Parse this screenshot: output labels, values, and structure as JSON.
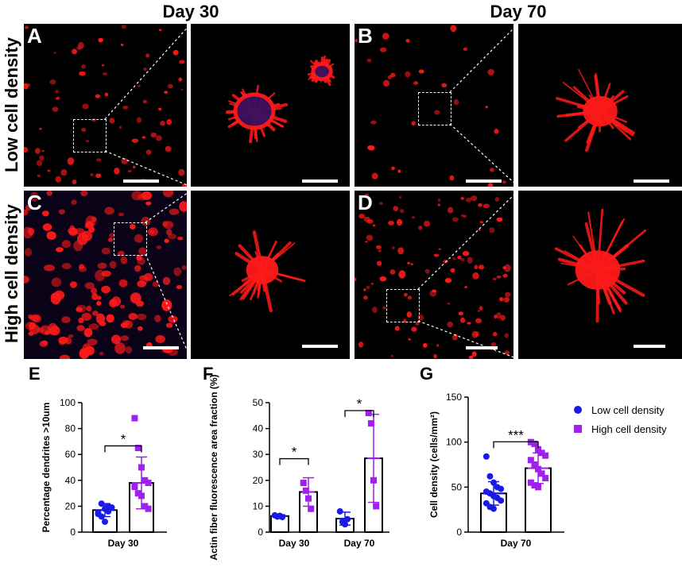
{
  "columns": [
    "Day 30",
    "Day 70"
  ],
  "rows": [
    "Low cell density",
    "High cell density"
  ],
  "panels": [
    "A",
    "B",
    "C",
    "D"
  ],
  "colors": {
    "low": "#1a1ae6",
    "high": "#a020f0",
    "actin": "#ff1a1a"
  },
  "chart_data": [
    {
      "id": "E",
      "type": "bar",
      "categories": [
        "Day 30"
      ],
      "ylabel": "Percentage dendrites >10um",
      "ylim": [
        0,
        100
      ],
      "yticks": [
        0,
        20,
        40,
        60,
        80,
        100
      ],
      "series": [
        {
          "name": "Low cell density",
          "values": [
            17
          ],
          "sd": [
            5
          ],
          "points": [
            [
              14,
              12,
              18,
              20,
              19,
              15,
              22,
              8,
              16
            ]
          ]
        },
        {
          "name": "High cell density",
          "values": [
            38
          ],
          "sd": [
            20
          ],
          "points": [
            [
              88,
              65,
              50,
              40,
              38,
              35,
              30,
              28,
              20,
              18
            ]
          ]
        }
      ],
      "significance": [
        "*"
      ]
    },
    {
      "id": "F",
      "type": "bar",
      "categories": [
        "Day 30",
        "Day 70"
      ],
      "ylabel": "Actin fiber fluorescence area fraction (%)",
      "ylim": [
        0,
        50
      ],
      "yticks": [
        0,
        10,
        20,
        30,
        40,
        50
      ],
      "series": [
        {
          "name": "Low cell density",
          "values": [
            6.2,
            5.2
          ],
          "sd": [
            0.5,
            2.5
          ],
          "points": [
            [
              6.5,
              6.0,
              6.3,
              5.8
            ],
            [
              8,
              4,
              3,
              5
            ]
          ]
        },
        {
          "name": "High cell density",
          "values": [
            15.5,
            28.5
          ],
          "sd": [
            5.5,
            17
          ],
          "points": [
            [
              19,
              16,
              13,
              9
            ],
            [
              46,
              42,
              20,
              10
            ]
          ]
        }
      ],
      "significance": [
        "*",
        "*"
      ]
    },
    {
      "id": "G",
      "type": "bar",
      "categories": [
        "Day 70"
      ],
      "ylabel": "Cell density (cells/mm²)",
      "ylim": [
        0,
        150
      ],
      "yticks": [
        0,
        50,
        100,
        150
      ],
      "series": [
        {
          "name": "Low cell density",
          "values": [
            43
          ],
          "sd": [
            13
          ],
          "points": [
            [
              84,
              62,
              55,
              50,
              48,
              45,
              43,
              40,
              38,
              35,
              32,
              28,
              26
            ]
          ]
        },
        {
          "name": "High cell density",
          "values": [
            71
          ],
          "sd": [
            17
          ],
          "points": [
            [
              100,
              98,
              92,
              88,
              85,
              80,
              75,
              70,
              65,
              60,
              55,
              52,
              50
            ]
          ]
        }
      ],
      "significance": [
        "***"
      ]
    }
  ],
  "legend": [
    {
      "label": "Low cell density",
      "shape": "circle"
    },
    {
      "label": "High cell density",
      "shape": "square"
    }
  ]
}
